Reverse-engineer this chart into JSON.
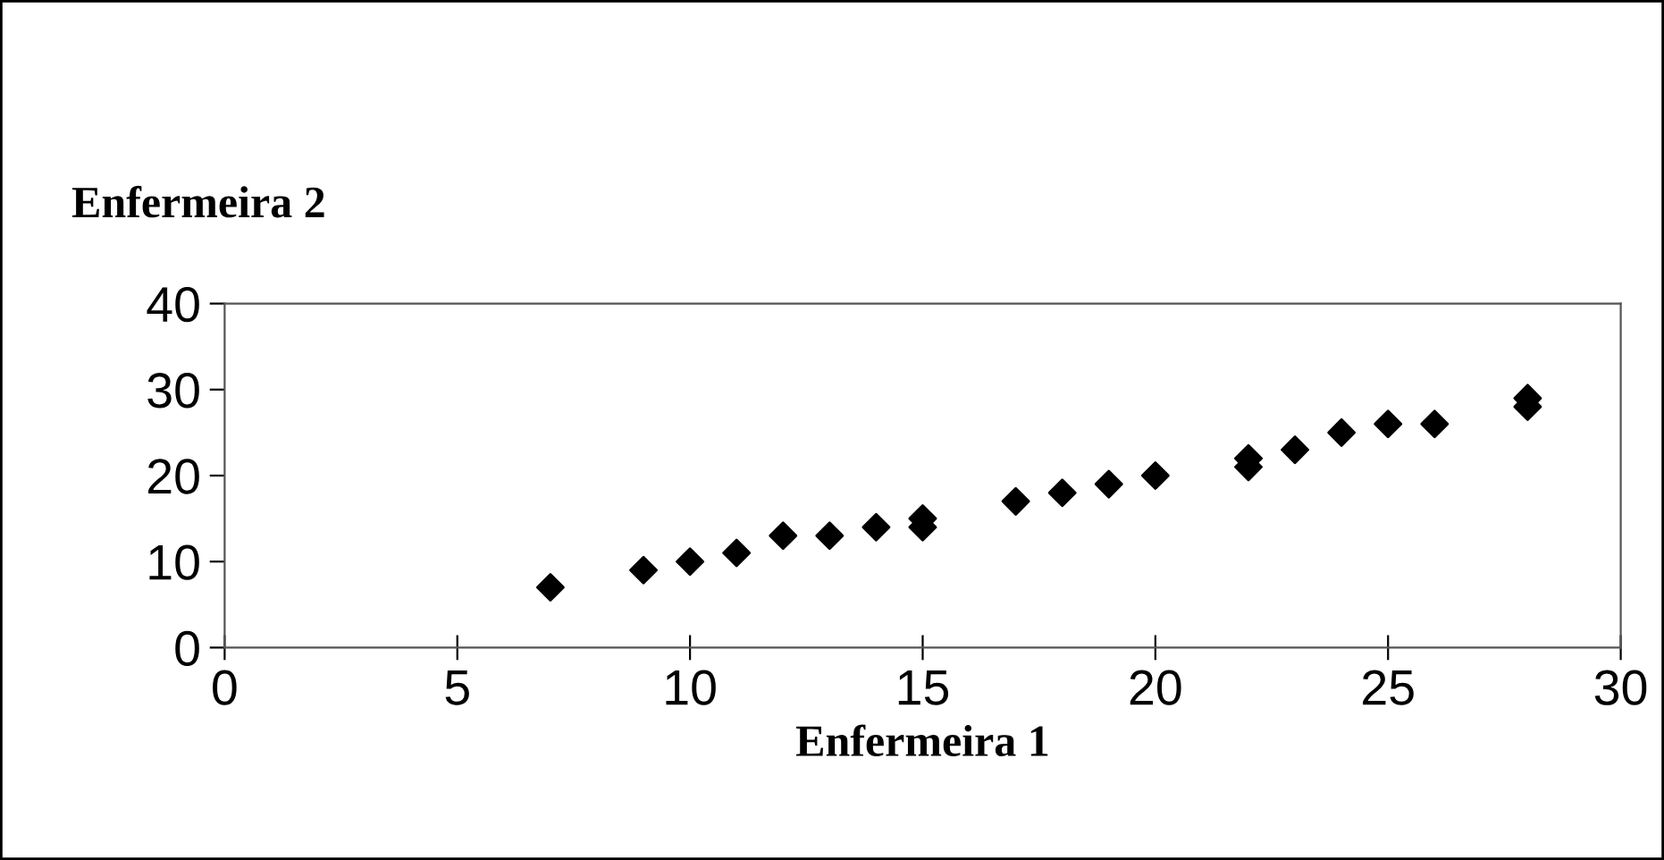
{
  "chart_data": {
    "type": "scatter",
    "xlabel": "Enfermeira 1",
    "ylabel": "Enfermeira 2",
    "x": [
      7,
      9,
      10,
      11,
      12,
      13,
      14,
      15,
      15,
      17,
      18,
      19,
      20,
      22,
      22,
      23,
      24,
      25,
      26,
      28,
      28
    ],
    "series": [
      {
        "color": "#000000",
        "values": [
          7,
          9,
          10,
          11,
          13,
          13,
          14,
          15,
          14,
          17,
          18,
          19,
          20,
          22,
          21,
          23,
          25,
          26,
          26,
          29,
          28
        ]
      }
    ],
    "marker": "diamond",
    "xlim": [
      0,
      30
    ],
    "ylim": [
      0,
      40
    ],
    "xticks": [
      0,
      5,
      10,
      15,
      20,
      25,
      30
    ],
    "yticks": [
      0,
      10,
      20,
      30,
      40
    ],
    "grid": false,
    "legend": false
  }
}
